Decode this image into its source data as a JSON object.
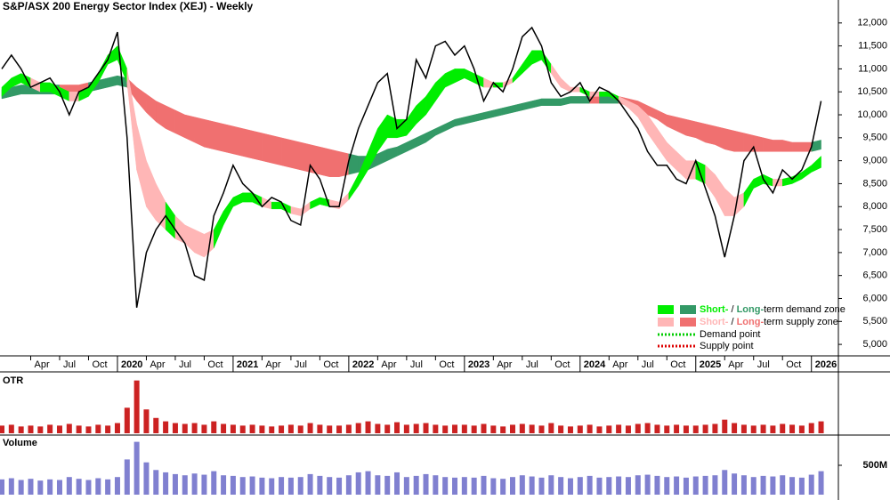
{
  "chart_data": {
    "type": "price-zones",
    "title": "S&P/ASX 200 Energy Sector Index (XEJ) - Weekly",
    "x": [
      "2019-01",
      "2019-02",
      "2019-03",
      "2019-04",
      "2019-05",
      "2019-06",
      "2019-07",
      "2019-08",
      "2019-09",
      "2019-10",
      "2019-11",
      "2019-12",
      "2020-01",
      "2020-02",
      "2020-03",
      "2020-04",
      "2020-05",
      "2020-06",
      "2020-07",
      "2020-08",
      "2020-09",
      "2020-10",
      "2020-11",
      "2020-12",
      "2021-01",
      "2021-02",
      "2021-03",
      "2021-04",
      "2021-05",
      "2021-06",
      "2021-07",
      "2021-08",
      "2021-09",
      "2021-10",
      "2021-11",
      "2021-12",
      "2022-01",
      "2022-02",
      "2022-03",
      "2022-04",
      "2022-05",
      "2022-06",
      "2022-07",
      "2022-08",
      "2022-09",
      "2022-10",
      "2022-11",
      "2022-12",
      "2023-01",
      "2023-02",
      "2023-03",
      "2023-04",
      "2023-05",
      "2023-06",
      "2023-07",
      "2023-08",
      "2023-09",
      "2023-10",
      "2023-11",
      "2023-12",
      "2024-01",
      "2024-02",
      "2024-03",
      "2024-04",
      "2024-05",
      "2024-06",
      "2024-07",
      "2024-08",
      "2024-09",
      "2024-10",
      "2024-11",
      "2024-12",
      "2025-01",
      "2025-02",
      "2025-03",
      "2025-04",
      "2025-05",
      "2025-06",
      "2025-07",
      "2025-08",
      "2025-09",
      "2025-10",
      "2025-11",
      "2025-12",
      "2026-01",
      "2026-02"
    ],
    "close": [
      11000,
      11300,
      11000,
      10600,
      10700,
      10800,
      10500,
      10000,
      10500,
      10600,
      10900,
      11200,
      11800,
      9500,
      5800,
      7000,
      7500,
      7800,
      7500,
      7200,
      6500,
      6400,
      7800,
      8300,
      8900,
      8500,
      8300,
      8000,
      8200,
      8100,
      7700,
      7600,
      8900,
      8600,
      8000,
      8000,
      9000,
      9700,
      10200,
      10700,
      10900,
      9700,
      9900,
      11200,
      10800,
      11500,
      11600,
      11300,
      11500,
      11000,
      10300,
      10700,
      10500,
      11000,
      11700,
      11900,
      11500,
      10700,
      10400,
      10500,
      10700,
      10300,
      10600,
      10500,
      10300,
      10000,
      9700,
      9200,
      8900,
      8900,
      8600,
      8500,
      9000,
      8400,
      7800,
      6900,
      7800,
      9000,
      9300,
      8600,
      8300,
      8800,
      8600,
      8800,
      9300,
      10300
    ],
    "short_upper": [
      10600,
      10800,
      10900,
      10800,
      10700,
      10700,
      10600,
      10500,
      10500,
      10600,
      10900,
      11300,
      11500,
      11000,
      9800,
      9000,
      8500,
      8100,
      7800,
      7600,
      7500,
      7400,
      7500,
      7900,
      8200,
      8300,
      8300,
      8200,
      8100,
      8100,
      8000,
      7950,
      8100,
      8200,
      8150,
      8100,
      8300,
      8700,
      9200,
      9700,
      10000,
      9900,
      9900,
      10200,
      10400,
      10700,
      10900,
      11000,
      11000,
      10900,
      10800,
      10700,
      10700,
      10800,
      11100,
      11400,
      11400,
      11100,
      10800,
      10600,
      10600,
      10500,
      10500,
      10500,
      10400,
      10300,
      10200,
      10000,
      9700,
      9400,
      9200,
      9000,
      9000,
      8900,
      8700,
      8400,
      8200,
      8300,
      8600,
      8700,
      8600,
      8600,
      8650,
      8750,
      8900,
      9100
    ],
    "short_lower": [
      10400,
      10600,
      10700,
      10600,
      10500,
      10500,
      10400,
      10300,
      10300,
      10400,
      10700,
      11100,
      11200,
      10700,
      8800,
      8000,
      7700,
      7500,
      7300,
      7200,
      7000,
      6900,
      7100,
      7600,
      8000,
      8100,
      8100,
      8000,
      7950,
      7950,
      7850,
      7800,
      7950,
      8050,
      8000,
      7950,
      8150,
      8450,
      8800,
      9200,
      9500,
      9500,
      9550,
      9800,
      10000,
      10300,
      10600,
      10700,
      10800,
      10700,
      10600,
      10600,
      10600,
      10700,
      10900,
      11100,
      11200,
      10900,
      10600,
      10500,
      10500,
      10400,
      10400,
      10400,
      10300,
      10150,
      9950,
      9600,
      9300,
      9000,
      8800,
      8600,
      8600,
      8500,
      8200,
      7800,
      7800,
      8000,
      8400,
      8500,
      8450,
      8450,
      8500,
      8600,
      8750,
      8850
    ],
    "long_upper": [
      10550,
      10600,
      10650,
      10650,
      10650,
      10650,
      10650,
      10650,
      10650,
      10700,
      10750,
      10800,
      10850,
      10800,
      10600,
      10450,
      10300,
      10200,
      10100,
      10000,
      9950,
      9900,
      9850,
      9800,
      9750,
      9700,
      9650,
      9600,
      9550,
      9500,
      9450,
      9400,
      9350,
      9300,
      9250,
      9200,
      9150,
      9100,
      9100,
      9150,
      9250,
      9300,
      9400,
      9500,
      9600,
      9700,
      9800,
      9900,
      9950,
      10000,
      10050,
      10100,
      10150,
      10200,
      10250,
      10300,
      10350,
      10350,
      10350,
      10400,
      10400,
      10400,
      10400,
      10400,
      10400,
      10350,
      10300,
      10200,
      10100,
      10000,
      9950,
      9900,
      9850,
      9800,
      9750,
      9700,
      9650,
      9600,
      9550,
      9500,
      9450,
      9450,
      9400,
      9400,
      9400,
      9450
    ],
    "long_lower": [
      10350,
      10400,
      10450,
      10450,
      10450,
      10450,
      10450,
      10450,
      10450,
      10500,
      10550,
      10600,
      10650,
      10600,
      10300,
      10050,
      9850,
      9700,
      9600,
      9500,
      9400,
      9300,
      9250,
      9200,
      9150,
      9100,
      9050,
      9000,
      8950,
      8900,
      8850,
      8800,
      8750,
      8700,
      8650,
      8650,
      8700,
      8750,
      8800,
      8900,
      9000,
      9100,
      9200,
      9300,
      9400,
      9550,
      9650,
      9750,
      9800,
      9850,
      9900,
      9950,
      10000,
      10050,
      10100,
      10150,
      10200,
      10200,
      10200,
      10250,
      10250,
      10250,
      10250,
      10250,
      10250,
      10200,
      10100,
      10000,
      9900,
      9750,
      9650,
      9550,
      9500,
      9400,
      9350,
      9250,
      9200,
      9200,
      9200,
      9200,
      9200,
      9200,
      9200,
      9200,
      9200,
      9250
    ],
    "colors": {
      "price": "#000000",
      "short_demand": "#00ee00",
      "long_demand": "#339966",
      "short_supply": "#ffb6b6",
      "long_supply": "#f07070",
      "demand_point": "#00cc00",
      "supply_point": "#dd0000"
    },
    "ylim": [
      4750,
      12500
    ],
    "yticks": [
      {
        "value": 5000,
        "label": "5,000"
      },
      {
        "value": 5500,
        "label": "5,500"
      },
      {
        "value": 6000,
        "label": "6,000"
      },
      {
        "value": 6500,
        "label": "6,500"
      },
      {
        "value": 7000,
        "label": "7,000"
      },
      {
        "value": 7500,
        "label": "7,500"
      },
      {
        "value": 8000,
        "label": "8,000"
      },
      {
        "value": 8500,
        "label": "8,500"
      },
      {
        "value": 9000,
        "label": "9,000"
      },
      {
        "value": 9500,
        "label": "9,500"
      },
      {
        "value": 10000,
        "label": "10,000"
      },
      {
        "value": 10500,
        "label": "10,500"
      },
      {
        "value": 11000,
        "label": "11,000"
      },
      {
        "value": 11500,
        "label": "11,500"
      },
      {
        "value": 12000,
        "label": "12,000"
      }
    ],
    "xticks": [
      {
        "value": "2019-04",
        "label": "Apr"
      },
      {
        "value": "2019-07",
        "label": "Jul"
      },
      {
        "value": "2019-10",
        "label": "Oct"
      },
      {
        "value": "2020-01",
        "label": "2020"
      },
      {
        "value": "2020-04",
        "label": "Apr"
      },
      {
        "value": "2020-07",
        "label": "Jul"
      },
      {
        "value": "2020-10",
        "label": "Oct"
      },
      {
        "value": "2021-01",
        "label": "2021"
      },
      {
        "value": "2021-04",
        "label": "Apr"
      },
      {
        "value": "2021-07",
        "label": "Jul"
      },
      {
        "value": "2021-10",
        "label": "Oct"
      },
      {
        "value": "2022-01",
        "label": "2022"
      },
      {
        "value": "2022-04",
        "label": "Apr"
      },
      {
        "value": "2022-07",
        "label": "Jul"
      },
      {
        "value": "2022-10",
        "label": "Oct"
      },
      {
        "value": "2023-01",
        "label": "2023"
      },
      {
        "value": "2023-04",
        "label": "Apr"
      },
      {
        "value": "2023-07",
        "label": "Jul"
      },
      {
        "value": "2023-10",
        "label": "Oct"
      },
      {
        "value": "2024-01",
        "label": "2024"
      },
      {
        "value": "2024-04",
        "label": "Apr"
      },
      {
        "value": "2024-07",
        "label": "Jul"
      },
      {
        "value": "2024-10",
        "label": "Oct"
      },
      {
        "value": "2025-01",
        "label": "2025"
      },
      {
        "value": "2025-04",
        "label": "Apr"
      },
      {
        "value": "2025-07",
        "label": "Jul"
      },
      {
        "value": "2025-10",
        "label": "Oct"
      },
      {
        "value": "2026-01",
        "label": "2026"
      }
    ],
    "legend": {
      "demand": [
        "Short-",
        " / ",
        "Long-",
        "term demand zone"
      ],
      "supply": [
        "Short-",
        " / ",
        "Long-",
        "term supply zone"
      ],
      "demand_point": "Demand point",
      "supply_point": "Supply point"
    },
    "otr": {
      "label": "OTR",
      "color": "#cc2222",
      "ylim": [
        0,
        70
      ],
      "values": [
        9,
        10,
        8,
        9,
        8,
        10,
        9,
        11,
        9,
        8,
        10,
        9,
        12,
        30,
        62,
        28,
        18,
        14,
        12,
        11,
        12,
        10,
        14,
        11,
        10,
        9,
        10,
        9,
        8,
        9,
        10,
        9,
        12,
        10,
        9,
        9,
        10,
        12,
        14,
        11,
        10,
        13,
        10,
        11,
        12,
        10,
        9,
        10,
        10,
        9,
        11,
        9,
        8,
        10,
        11,
        10,
        9,
        12,
        9,
        8,
        9,
        10,
        8,
        9,
        10,
        9,
        11,
        12,
        10,
        9,
        10,
        9,
        9,
        10,
        11,
        16,
        12,
        10,
        9,
        10,
        9,
        11,
        10,
        9,
        12,
        14
      ]
    },
    "volume": {
      "label": "Volume",
      "color": "#8080d0",
      "ylim": [
        0,
        1000
      ],
      "yticks": [
        {
          "value": 500,
          "label": "500M"
        }
      ],
      "values": [
        260,
        280,
        250,
        270,
        240,
        260,
        250,
        300,
        270,
        250,
        280,
        260,
        300,
        600,
        900,
        550,
        420,
        380,
        350,
        330,
        360,
        340,
        400,
        330,
        320,
        300,
        310,
        290,
        280,
        300,
        290,
        300,
        350,
        320,
        300,
        290,
        330,
        380,
        400,
        330,
        320,
        380,
        300,
        320,
        350,
        330,
        300,
        290,
        300,
        290,
        320,
        280,
        270,
        300,
        330,
        310,
        290,
        330,
        300,
        280,
        300,
        320,
        290,
        300,
        310,
        300,
        330,
        340,
        320,
        300,
        310,
        290,
        310,
        320,
        330,
        420,
        360,
        330,
        300,
        320,
        310,
        330,
        300,
        290,
        340,
        400
      ]
    }
  }
}
